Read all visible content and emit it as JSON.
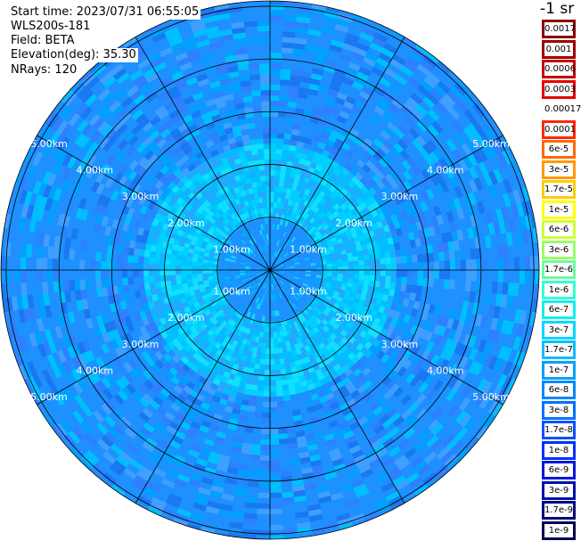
{
  "header": {
    "start_time": "Start time: 2023/07/31 06:55:05",
    "instrument": "WLS200s-181",
    "field": "Field: BETA",
    "elevation": "Elevation(deg): 35.30",
    "nrays": "NRays: 120"
  },
  "colorbar": {
    "unit": "-1 sr",
    "entries": [
      {
        "label": "0.0017",
        "color": "#8b0000"
      },
      {
        "label": "0.001",
        "color": "#a00000"
      },
      {
        "label": "0.0006",
        "color": "#c80000"
      },
      {
        "label": "0.0003",
        "color": "#e60000"
      },
      {
        "label": "0.00017",
        "color": "#ffffff"
      },
      {
        "label": "0.0001",
        "color": "#ff2800"
      },
      {
        "label": "6e-5",
        "color": "#ff6a00"
      },
      {
        "label": "3e-5",
        "color": "#ff9a00"
      },
      {
        "label": "1.7e-5",
        "color": "#ffcc00"
      },
      {
        "label": "1e-5",
        "color": "#ffff00"
      },
      {
        "label": "6e-6",
        "color": "#ccff33"
      },
      {
        "label": "3e-6",
        "color": "#99ff66"
      },
      {
        "label": "1.7e-6",
        "color": "#66ff99"
      },
      {
        "label": "1e-6",
        "color": "#33ffcc"
      },
      {
        "label": "6e-7",
        "color": "#11f0f0"
      },
      {
        "label": "3e-7",
        "color": "#00d8ff"
      },
      {
        "label": "1.7e-7",
        "color": "#00bfff"
      },
      {
        "label": "1e-7",
        "color": "#00a0ff"
      },
      {
        "label": "6e-8",
        "color": "#0088ff"
      },
      {
        "label": "3e-8",
        "color": "#0070ff"
      },
      {
        "label": "1.7e-8",
        "color": "#0050ff"
      },
      {
        "label": "1e-8",
        "color": "#0030ff"
      },
      {
        "label": "6e-9",
        "color": "#0018e0"
      },
      {
        "label": "3e-9",
        "color": "#0010b0"
      },
      {
        "label": "1.7e-9",
        "color": "#000a80"
      },
      {
        "label": "1e-9",
        "color": "#000050"
      }
    ]
  },
  "chart_data": {
    "type": "ppi",
    "field": "BETA",
    "elevation_deg": 35.3,
    "n_rays": 120,
    "range_ring_labels": [
      "1.00km",
      "2.00km",
      "3.00km",
      "4.00km",
      "5.00km"
    ],
    "range_rings_km": [
      1,
      2,
      3,
      4,
      5
    ],
    "max_range_km": 5.1,
    "spoke_angles_deg": [
      0,
      30,
      60,
      90,
      120,
      150,
      180,
      210,
      240,
      270,
      300,
      330
    ],
    "dominant_colors": [
      "#00bfff",
      "#00a0ff",
      "#0088ff",
      "#11f0f0"
    ],
    "pattern": "near-range annulus (about 1-2 km) predominantly cyan/light blue, outer ranges speckled medium blue"
  }
}
